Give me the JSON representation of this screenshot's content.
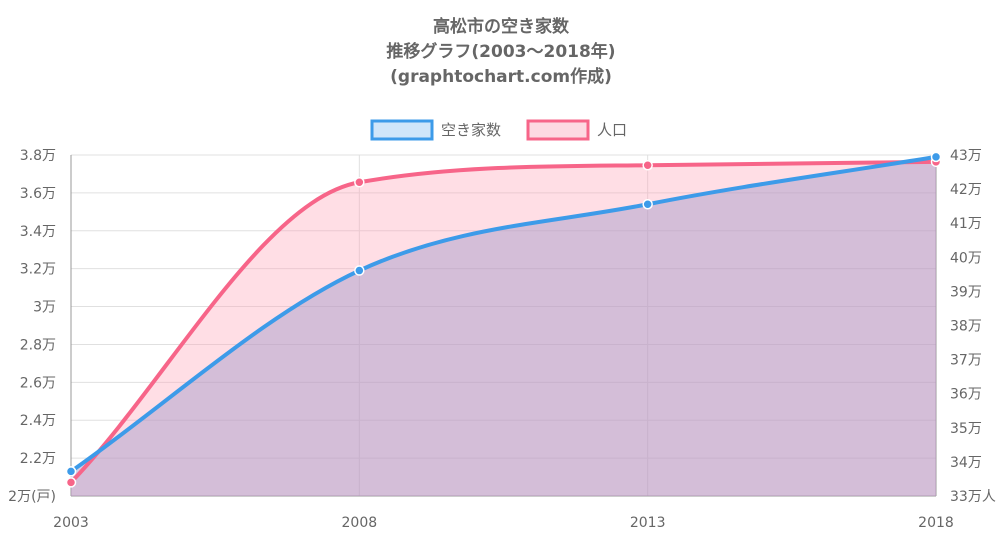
{
  "chart_data": {
    "type": "area",
    "title_lines": [
      "高松市の空き家数",
      "推移グラフ(2003～2018年)",
      "(graphtochart.com作成)"
    ],
    "x": [
      "2003",
      "2008",
      "2013",
      "2018"
    ],
    "series": [
      {
        "name": "空き家数",
        "axis": "left",
        "values": [
          21300,
          31900,
          35400,
          37900
        ],
        "color": "#3d9be9",
        "fill": "rgba(160,150,200,0.45)"
      },
      {
        "name": "人口",
        "axis": "right",
        "values": [
          334000,
          422000,
          427000,
          428000
        ],
        "color": "#f76589",
        "fill": "rgba(255,160,180,0.35)"
      }
    ],
    "y_left": {
      "range": [
        20000,
        38000
      ],
      "ticks": [
        {
          "v": 20000,
          "label": "2万(戸)"
        },
        {
          "v": 22000,
          "label": "2.2万"
        },
        {
          "v": 24000,
          "label": "2.4万"
        },
        {
          "v": 26000,
          "label": "2.6万"
        },
        {
          "v": 28000,
          "label": "2.8万"
        },
        {
          "v": 30000,
          "label": "3万"
        },
        {
          "v": 32000,
          "label": "3.2万"
        },
        {
          "v": 34000,
          "label": "3.4万"
        },
        {
          "v": 36000,
          "label": "3.6万"
        },
        {
          "v": 38000,
          "label": "3.8万"
        }
      ]
    },
    "y_right": {
      "range": [
        330000,
        430000
      ],
      "ticks": [
        {
          "v": 330000,
          "label": "33万人"
        },
        {
          "v": 340000,
          "label": "34万"
        },
        {
          "v": 350000,
          "label": "35万"
        },
        {
          "v": 360000,
          "label": "36万"
        },
        {
          "v": 370000,
          "label": "37万"
        },
        {
          "v": 380000,
          "label": "38万"
        },
        {
          "v": 390000,
          "label": "39万"
        },
        {
          "v": 400000,
          "label": "40万"
        },
        {
          "v": 410000,
          "label": "41万"
        },
        {
          "v": 420000,
          "label": "42万"
        },
        {
          "v": 430000,
          "label": "43万"
        }
      ]
    },
    "legend": "top",
    "grid": true
  }
}
